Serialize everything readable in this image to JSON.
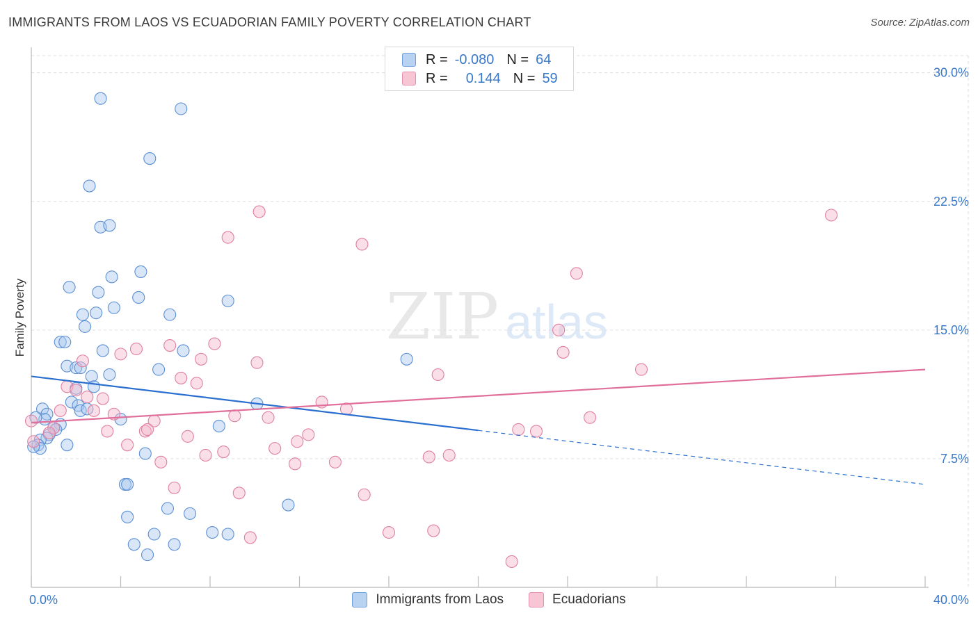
{
  "title": "IMMIGRANTS FROM LAOS VS ECUADORIAN FAMILY POVERTY CORRELATION CHART",
  "source": "Source: ZipAtlas.com",
  "watermark": {
    "zip": "ZIP",
    "atlas": "atlas"
  },
  "legend": {
    "series1": {
      "r_label": "R =",
      "r_value": "-0.080",
      "n_label": "N =",
      "n_value": "64"
    },
    "series2": {
      "r_label": "R =",
      "r_value": "0.144",
      "n_label": "N =",
      "n_value": "59"
    }
  },
  "colors": {
    "blue_fill": "#a9c8ee",
    "blue_stroke": "#5b8fd4",
    "blue_line": "#2a6fd0",
    "pink_fill": "#f5b8cc",
    "pink_stroke": "#e07fa0",
    "pink_line": "#e0709a",
    "tick_color": "#3a78c9",
    "grid": "#dddddd"
  },
  "chart_data": {
    "type": "scatter",
    "title": "IMMIGRANTS FROM LAOS VS ECUADORIAN FAMILY POVERTY CORRELATION CHART",
    "xlabel": "",
    "ylabel": "Family Poverty",
    "xlim": [
      0,
      40
    ],
    "ylim": [
      0,
      31
    ],
    "x_tick_labels": [
      "0.0%",
      "40.0%"
    ],
    "y_ticks": [
      7.5,
      15.0,
      22.5,
      30.0
    ],
    "y_tick_labels": [
      "7.5%",
      "15.0%",
      "22.5%",
      "30.0%"
    ],
    "series": [
      {
        "name": "Immigrants from Laos",
        "color": "blue",
        "trend": {
          "x0": 0,
          "y0": 12.3,
          "x_solid_end": 20,
          "x1": 40,
          "y1": 6.0
        },
        "points": [
          [
            3.1,
            28.5
          ],
          [
            6.7,
            27.9
          ],
          [
            5.3,
            25.0
          ],
          [
            2.6,
            23.4
          ],
          [
            3.1,
            21.0
          ],
          [
            3.5,
            21.1
          ],
          [
            3.6,
            18.1
          ],
          [
            4.9,
            18.4
          ],
          [
            1.7,
            17.5
          ],
          [
            3.0,
            17.2
          ],
          [
            4.8,
            16.9
          ],
          [
            8.8,
            16.7
          ],
          [
            3.7,
            16.3
          ],
          [
            2.3,
            15.9
          ],
          [
            2.9,
            16.0
          ],
          [
            6.2,
            15.9
          ],
          [
            2.4,
            15.2
          ],
          [
            1.3,
            14.3
          ],
          [
            1.5,
            14.3
          ],
          [
            3.2,
            13.8
          ],
          [
            6.8,
            13.8
          ],
          [
            1.6,
            12.9
          ],
          [
            2.0,
            12.8
          ],
          [
            2.2,
            12.8
          ],
          [
            5.7,
            12.7
          ],
          [
            3.5,
            12.4
          ],
          [
            16.8,
            13.3
          ],
          [
            2.7,
            12.3
          ],
          [
            2.8,
            11.7
          ],
          [
            2.0,
            11.6
          ],
          [
            1.8,
            10.8
          ],
          [
            2.1,
            10.6
          ],
          [
            2.2,
            10.3
          ],
          [
            2.5,
            10.4
          ],
          [
            0.5,
            10.4
          ],
          [
            0.7,
            10.1
          ],
          [
            0.6,
            9.8
          ],
          [
            0.2,
            9.9
          ],
          [
            4.0,
            9.8
          ],
          [
            10.1,
            10.7
          ],
          [
            1.3,
            9.5
          ],
          [
            1.0,
            9.3
          ],
          [
            1.1,
            9.2
          ],
          [
            0.8,
            8.9
          ],
          [
            0.7,
            8.7
          ],
          [
            0.4,
            8.6
          ],
          [
            0.3,
            8.3
          ],
          [
            0.4,
            8.1
          ],
          [
            1.6,
            8.3
          ],
          [
            8.4,
            9.4
          ],
          [
            5.1,
            7.8
          ],
          [
            4.2,
            6.0
          ],
          [
            4.3,
            6.0
          ],
          [
            6.1,
            4.6
          ],
          [
            11.5,
            4.8
          ],
          [
            7.1,
            4.3
          ],
          [
            4.3,
            4.1
          ],
          [
            5.5,
            3.1
          ],
          [
            8.1,
            3.2
          ],
          [
            8.8,
            3.1
          ],
          [
            4.6,
            2.5
          ],
          [
            6.4,
            2.5
          ],
          [
            5.2,
            1.9
          ],
          [
            0.1,
            8.2
          ]
        ]
      },
      {
        "name": "Ecuadorians",
        "color": "pink",
        "trend": {
          "x0": 0,
          "y0": 9.6,
          "x1": 40,
          "y1": 12.7
        },
        "points": [
          [
            10.2,
            21.9
          ],
          [
            35.8,
            21.7
          ],
          [
            8.8,
            20.4
          ],
          [
            14.8,
            20.0
          ],
          [
            24.4,
            18.3
          ],
          [
            23.6,
            15.0
          ],
          [
            6.2,
            14.1
          ],
          [
            8.2,
            14.2
          ],
          [
            4.7,
            13.9
          ],
          [
            4.0,
            13.6
          ],
          [
            23.8,
            13.7
          ],
          [
            2.3,
            13.2
          ],
          [
            7.6,
            13.3
          ],
          [
            10.1,
            13.1
          ],
          [
            27.3,
            12.7
          ],
          [
            18.2,
            12.4
          ],
          [
            6.7,
            12.2
          ],
          [
            7.4,
            11.9
          ],
          [
            1.6,
            11.7
          ],
          [
            2.0,
            11.5
          ],
          [
            2.5,
            11.1
          ],
          [
            3.2,
            11.0
          ],
          [
            13.0,
            10.8
          ],
          [
            1.3,
            10.3
          ],
          [
            2.8,
            10.3
          ],
          [
            3.7,
            10.1
          ],
          [
            9.1,
            10.0
          ],
          [
            10.6,
            9.9
          ],
          [
            14.1,
            10.4
          ],
          [
            25.0,
            9.9
          ],
          [
            5.5,
            9.7
          ],
          [
            1.0,
            9.3
          ],
          [
            3.4,
            9.1
          ],
          [
            5.1,
            9.1
          ],
          [
            5.2,
            9.2
          ],
          [
            21.8,
            9.2
          ],
          [
            22.6,
            9.1
          ],
          [
            0.8,
            9.0
          ],
          [
            7.0,
            8.8
          ],
          [
            12.4,
            8.9
          ],
          [
            11.9,
            8.5
          ],
          [
            0.1,
            8.5
          ],
          [
            4.3,
            8.3
          ],
          [
            10.9,
            8.1
          ],
          [
            8.6,
            7.9
          ],
          [
            7.8,
            7.7
          ],
          [
            17.8,
            7.6
          ],
          [
            18.7,
            7.7
          ],
          [
            5.8,
            7.3
          ],
          [
            11.8,
            7.2
          ],
          [
            13.6,
            7.3
          ],
          [
            6.4,
            5.8
          ],
          [
            9.3,
            5.5
          ],
          [
            14.9,
            5.4
          ],
          [
            16.0,
            3.2
          ],
          [
            18.0,
            3.3
          ],
          [
            9.8,
            2.9
          ],
          [
            21.5,
            1.5
          ],
          [
            0.0,
            9.7
          ]
        ]
      }
    ]
  },
  "bottom_legend": [
    "Immigrants from Laos",
    "Ecuadorians"
  ]
}
